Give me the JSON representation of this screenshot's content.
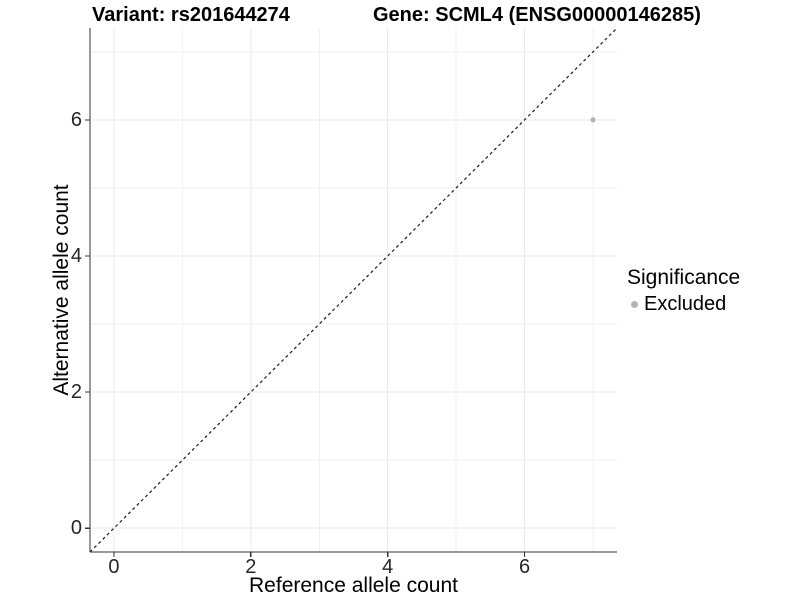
{
  "chart_data": {
    "type": "scatter",
    "title_left": "Variant: rs201644274",
    "title_right": "Gene: SCML4 (ENSG00000146285)",
    "xlabel": "Reference allele count",
    "ylabel": "Alternative allele count",
    "xlim": [
      -0.35,
      7.35
    ],
    "ylim": [
      -0.35,
      7.35
    ],
    "x_ticks": [
      0,
      2,
      4,
      6
    ],
    "y_ticks": [
      0,
      2,
      4,
      6
    ],
    "x_minor_ticks": [
      1,
      3,
      5,
      7
    ],
    "y_minor_ticks": [
      1,
      3,
      5,
      7
    ],
    "grid": "major and minor gridlines, light gray on white panel",
    "points": [
      {
        "x": 7,
        "y": 6,
        "significance": "Excluded"
      }
    ],
    "reference_line": {
      "kind": "identity y=x",
      "style": "dashed",
      "from": [
        -0.35,
        -0.35
      ],
      "to": [
        7.35,
        7.35
      ]
    },
    "legend": {
      "title": "Significance",
      "position": "right",
      "entries": [
        {
          "label": "Excluded",
          "color": "#b4b4b4"
        }
      ]
    },
    "colors": {
      "point": "#b4b4b4",
      "grid_major": "#e9e9e9",
      "grid_minor": "#f2f2f2",
      "axis_line": "#333333",
      "tick_mark": "#333333",
      "tick_label": "#262626",
      "reference_line": "#1a1a1a",
      "background": "#ffffff"
    }
  }
}
